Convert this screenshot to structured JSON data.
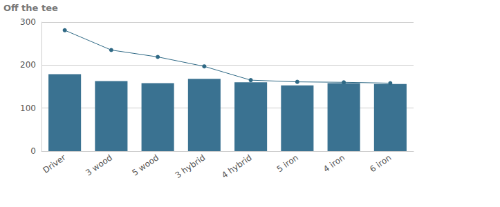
{
  "chart_data": {
    "type": "bar",
    "title": "Off the tee",
    "categories": [
      "Driver",
      "3 wood",
      "5 wood",
      "3 hybrid",
      "4 hybrid",
      "5 iron",
      "4 iron",
      "6 iron"
    ],
    "series": [
      {
        "type": "bar",
        "color": "#3a7291",
        "values": [
          179,
          163,
          158,
          168,
          160,
          153,
          158,
          156
        ]
      },
      {
        "type": "line",
        "color": "#2f6985",
        "marker": "circle",
        "values": [
          281,
          235,
          219,
          197,
          165,
          161,
          160,
          158
        ]
      }
    ],
    "ylim": [
      0,
      300
    ],
    "yticks": [
      0,
      100,
      200,
      300
    ],
    "grid": true
  }
}
